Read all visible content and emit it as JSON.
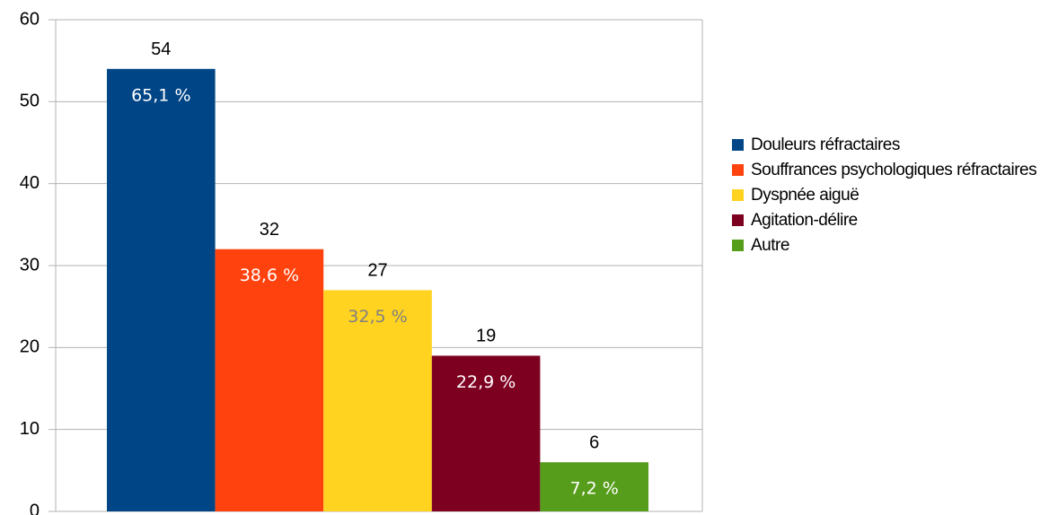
{
  "chart_data": {
    "type": "bar",
    "ylim": [
      0,
      60
    ],
    "yticks": [
      0,
      10,
      20,
      30,
      40,
      50,
      60
    ],
    "grid": true,
    "legend": "right",
    "series": [
      {
        "name": "Douleurs réfractaires",
        "color": "#004586",
        "values": [
          54
        ],
        "percent_labels": [
          "65,1 %"
        ],
        "inner_label_color": "#ffffff"
      },
      {
        "name": "Souffrances psychologiques réfrac­taires",
        "color": "#ff420e",
        "values": [
          32
        ],
        "percent_labels": [
          "38,6 %"
        ],
        "inner_label_color": "#ffffff"
      },
      {
        "name": "Dyspnée aiguë",
        "color": "#ffd320",
        "values": [
          27
        ],
        "percent_labels": [
          "32,5 %"
        ],
        "inner_label_color": "#808080"
      },
      {
        "name": "Agitation-délire",
        "color": "#7e0021",
        "values": [
          19
        ],
        "percent_labels": [
          "22,9 %"
        ],
        "inner_label_color": "#ffffff"
      },
      {
        "name": "Autre",
        "color": "#579d1c",
        "values": [
          6
        ],
        "percent_labels": [
          "7,2 %"
        ],
        "inner_label_color": "#ffffff"
      }
    ]
  }
}
